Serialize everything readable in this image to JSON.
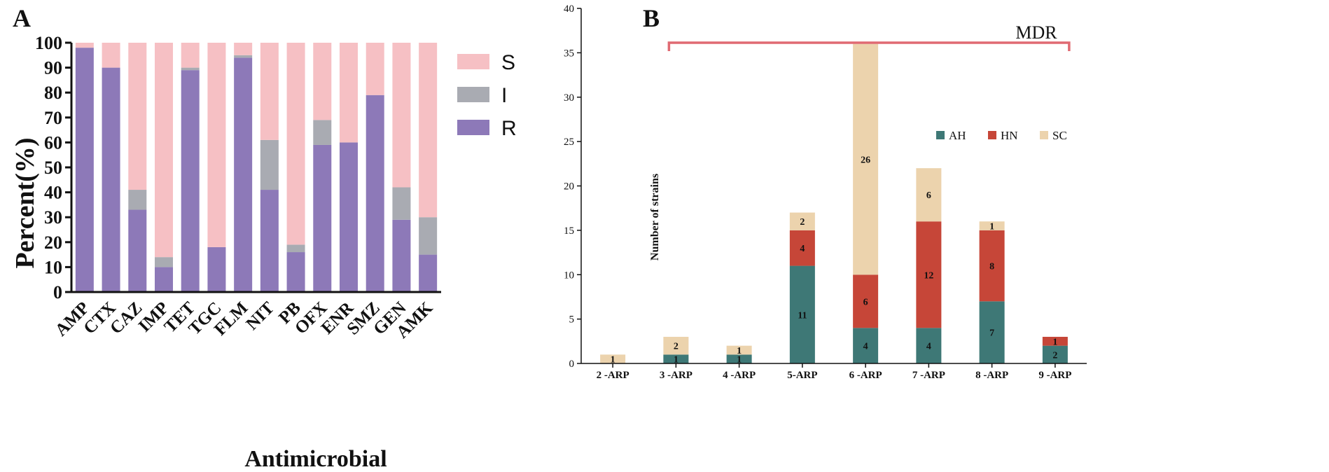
{
  "colors": {
    "S": "#f6c0c4",
    "I": "#a9abb2",
    "R": "#8d79b8",
    "AH": "#3e7876",
    "HN": "#c64638",
    "SC": "#ecd3ad",
    "MDR": "#e06a72"
  },
  "chart_data": [
    {
      "panel": "A",
      "type": "bar",
      "stacked": true,
      "categories": [
        "AMP",
        "CTX",
        "CAZ",
        "IMP",
        "TET",
        "TGC",
        "FLM",
        "NIT",
        "PB",
        "OFX",
        "ENR",
        "SMZ",
        "GEN",
        "AMK"
      ],
      "series": [
        {
          "name": "R",
          "values": [
            98,
            90,
            33,
            10,
            89,
            18,
            94,
            41,
            16,
            59,
            60,
            79,
            29,
            15
          ]
        },
        {
          "name": "I",
          "values": [
            0,
            0,
            8,
            4,
            1,
            0,
            1,
            20,
            3,
            10,
            0,
            0,
            13,
            15
          ]
        },
        {
          "name": "S",
          "values": [
            2,
            10,
            59,
            86,
            10,
            82,
            5,
            39,
            81,
            31,
            40,
            21,
            58,
            70
          ]
        }
      ],
      "legend": [
        "S",
        "I",
        "R"
      ],
      "legend_position": "right",
      "xlabel": "Antimicrobial",
      "ylabel": "Percent(%)",
      "ylim": [
        0,
        100
      ],
      "yticks": [
        0,
        10,
        20,
        30,
        40,
        50,
        60,
        70,
        80,
        90,
        100
      ]
    },
    {
      "panel": "B",
      "type": "bar",
      "stacked": true,
      "categories": [
        "2 -ARP",
        "3 -ARP",
        "4 -ARP",
        "5-ARP",
        "6 -ARP",
        "7 -ARP",
        "8 -ARP",
        "9 -ARP"
      ],
      "series": [
        {
          "name": "AH",
          "values": [
            0,
            1,
            1,
            11,
            4,
            4,
            7,
            2
          ]
        },
        {
          "name": "HN",
          "values": [
            0,
            0,
            0,
            4,
            6,
            12,
            8,
            1
          ]
        },
        {
          "name": "SC",
          "values": [
            1,
            2,
            1,
            2,
            26,
            6,
            1,
            0
          ]
        }
      ],
      "legend": [
        "AH",
        "HN",
        "SC"
      ],
      "legend_position": "top-right",
      "annotation": "MDR",
      "annotation_span": [
        "3 -ARP",
        "9 -ARP"
      ],
      "xlabel": "",
      "ylabel": "Number of strains",
      "ylim": [
        0,
        40
      ],
      "yticks": [
        0,
        5,
        10,
        15,
        20,
        25,
        30,
        35,
        40
      ]
    }
  ]
}
